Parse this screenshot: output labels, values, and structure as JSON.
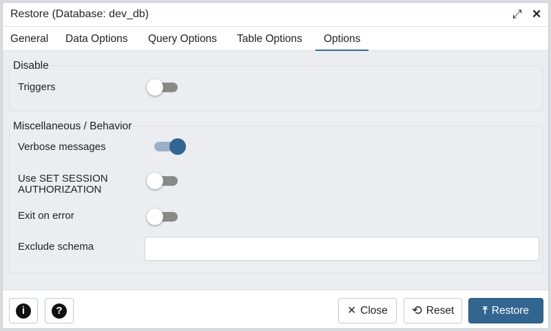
{
  "dialog": {
    "title": "Restore (Database: dev_db)",
    "icons": {
      "maximize": "expand-icon",
      "close": "close-icon"
    }
  },
  "tabs": [
    {
      "label": "General"
    },
    {
      "label": "Data Options"
    },
    {
      "label": "Query Options"
    },
    {
      "label": "Table Options"
    },
    {
      "label": "Options",
      "active": true
    }
  ],
  "disable": {
    "legend": "Disable",
    "triggers": {
      "label": "Triggers",
      "on": false
    }
  },
  "misc": {
    "legend": "Miscellaneous / Behavior",
    "verbose": {
      "label": "Verbose messages",
      "on": true
    },
    "set_session": {
      "label_line1": "Use SET SESSION",
      "label_line2": "AUTHORIZATION",
      "on": false
    },
    "exit_on_error": {
      "label": "Exit on error",
      "on": false
    },
    "exclude_schema": {
      "label": "Exclude schema",
      "value": ""
    }
  },
  "footer": {
    "info_icon": "i",
    "help_icon": "?",
    "close": "Close",
    "reset": "Reset",
    "restore": "Restore"
  },
  "colors": {
    "accent": "#326690"
  }
}
